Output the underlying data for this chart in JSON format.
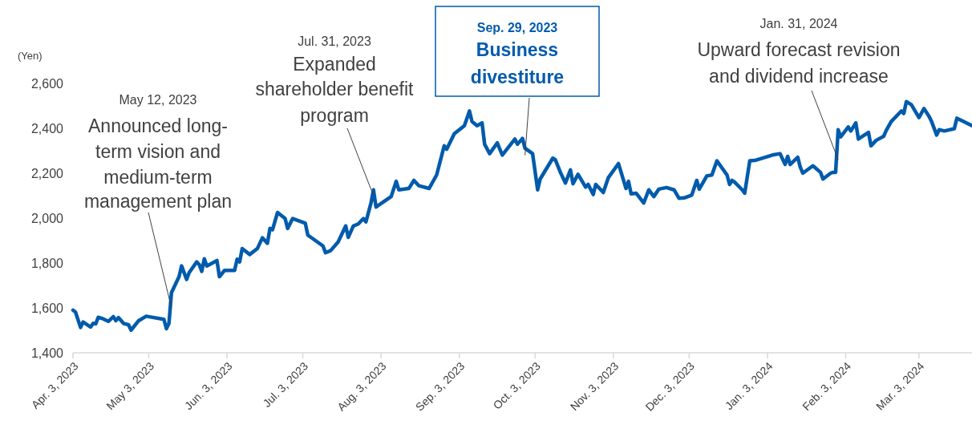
{
  "chart_data": {
    "type": "line",
    "ylabel": "(Yen)",
    "xlim": [
      "2023-04-03",
      "2024-03-24"
    ],
    "xticks": [
      {
        "value": "2023-04-03",
        "label": "Apr. 3, 2023"
      },
      {
        "value": "2023-05-03",
        "label": "May 3, 2023"
      },
      {
        "value": "2023-06-03",
        "label": "Jun. 3, 2023"
      },
      {
        "value": "2023-07-03",
        "label": "Jul. 3, 2023"
      },
      {
        "value": "2023-08-03",
        "label": "Aug. 3, 2023"
      },
      {
        "value": "2023-09-03",
        "label": "Sep. 3, 2023"
      },
      {
        "value": "2023-10-03",
        "label": "Oct. 3, 2023"
      },
      {
        "value": "2023-11-03",
        "label": "Nov. 3, 2023"
      },
      {
        "value": "2023-12-03",
        "label": "Dec. 3, 2023"
      },
      {
        "value": "2024-01-03",
        "label": "Jan. 3, 2024"
      },
      {
        "value": "2024-02-03",
        "label": "Feb. 3, 2024"
      },
      {
        "value": "2024-03-03",
        "label": "Mar. 3, 2024"
      }
    ],
    "ylim": [
      1400,
      2600
    ],
    "yticks": [
      {
        "value": 1400,
        "label": "1,400"
      },
      {
        "value": 1600,
        "label": "1,600"
      },
      {
        "value": 1800,
        "label": "1,800"
      },
      {
        "value": 2000,
        "label": "2,000"
      },
      {
        "value": 2200,
        "label": "2,200"
      },
      {
        "value": 2400,
        "label": "2,400"
      },
      {
        "value": 2600,
        "label": "2,600"
      }
    ],
    "x": [
      "2023-04-03",
      "2023-04-04",
      "2023-04-06",
      "2023-04-07",
      "2023-04-10",
      "2023-04-11",
      "2023-04-12",
      "2023-04-13",
      "2023-04-15",
      "2023-04-17",
      "2023-04-19",
      "2023-04-20",
      "2023-04-21",
      "2023-04-23",
      "2023-04-25",
      "2023-04-26",
      "2023-04-29",
      "2023-05-02",
      "2023-05-09",
      "2023-05-10",
      "2023-05-11",
      "2023-05-12",
      "2023-05-15",
      "2023-05-16",
      "2023-05-18",
      "2023-05-19",
      "2023-05-22",
      "2023-05-23",
      "2023-05-24",
      "2023-05-25",
      "2023-05-26",
      "2023-05-30",
      "2023-05-31",
      "2023-06-02",
      "2023-06-06",
      "2023-06-07",
      "2023-06-08",
      "2023-06-09",
      "2023-06-12",
      "2023-06-15",
      "2023-06-17",
      "2023-06-19",
      "2023-06-20",
      "2023-06-21",
      "2023-06-23",
      "2023-06-26",
      "2023-06-27",
      "2023-06-29",
      "2023-07-04",
      "2023-07-05",
      "2023-07-11",
      "2023-07-12",
      "2023-07-14",
      "2023-07-17",
      "2023-07-20",
      "2023-07-21",
      "2023-07-23",
      "2023-07-25",
      "2023-07-27",
      "2023-07-28",
      "2023-07-30",
      "2023-07-31",
      "2023-08-01",
      "2023-08-04",
      "2023-08-07",
      "2023-08-09",
      "2023-08-10",
      "2023-08-14",
      "2023-08-16",
      "2023-08-18",
      "2023-08-22",
      "2023-08-25",
      "2023-08-28",
      "2023-08-29",
      "2023-09-01",
      "2023-09-05",
      "2023-09-07",
      "2023-09-08",
      "2023-09-10",
      "2023-09-12",
      "2023-09-13",
      "2023-09-15",
      "2023-09-18",
      "2023-09-20",
      "2023-09-25",
      "2023-09-26",
      "2023-09-28",
      "2023-09-29",
      "2023-10-02",
      "2023-10-04",
      "2023-10-05",
      "2023-10-10",
      "2023-10-11",
      "2023-10-13",
      "2023-10-15",
      "2023-10-17",
      "2023-10-18",
      "2023-10-20",
      "2023-10-23",
      "2023-10-24",
      "2023-10-26",
      "2023-10-27",
      "2023-10-30",
      "2023-11-01",
      "2023-11-05",
      "2023-11-08",
      "2023-11-09",
      "2023-11-10",
      "2023-11-12",
      "2023-11-15",
      "2023-11-17",
      "2023-11-19",
      "2023-11-21",
      "2023-11-24",
      "2023-11-27",
      "2023-11-29",
      "2023-12-01",
      "2023-12-04",
      "2023-12-06",
      "2023-12-07",
      "2023-12-10",
      "2023-12-12",
      "2023-12-14",
      "2023-12-18",
      "2023-12-19",
      "2023-12-20",
      "2023-12-21",
      "2023-12-24",
      "2023-12-25",
      "2023-12-27",
      "2023-12-29",
      "2024-01-05",
      "2024-01-08",
      "2024-01-10",
      "2024-01-11",
      "2024-01-12",
      "2024-01-15",
      "2024-01-16",
      "2024-01-17",
      "2024-01-21",
      "2024-01-24",
      "2024-01-25",
      "2024-01-28",
      "2024-01-29",
      "2024-01-30",
      "2024-01-31",
      "2024-02-01",
      "2024-02-04",
      "2024-02-05",
      "2024-02-07",
      "2024-02-08",
      "2024-02-12",
      "2024-02-13",
      "2024-02-15",
      "2024-02-18",
      "2024-02-19",
      "2024-02-21",
      "2024-02-25",
      "2024-02-26",
      "2024-02-27",
      "2024-02-29",
      "2024-03-03",
      "2024-03-05",
      "2024-03-07",
      "2024-03-08",
      "2024-03-10",
      "2024-03-11",
      "2024-03-13",
      "2024-03-17",
      "2024-03-18",
      "2024-03-20",
      "2024-03-24"
    ],
    "series": [
      {
        "color": "#005bac",
        "values": [
          1590,
          1581,
          1513,
          1537,
          1515,
          1531,
          1529,
          1558,
          1551,
          1540,
          1561,
          1543,
          1557,
          1531,
          1525,
          1501,
          1543,
          1563,
          1549,
          1507,
          1531,
          1668,
          1739,
          1787,
          1727,
          1757,
          1805,
          1793,
          1763,
          1819,
          1787,
          1811,
          1739,
          1767,
          1767,
          1817,
          1805,
          1864,
          1838,
          1864,
          1912,
          1888,
          1954,
          1948,
          2025,
          1998,
          1954,
          1998,
          1977,
          1924,
          1876,
          1846,
          1855,
          1894,
          1965,
          1914,
          1965,
          1974,
          1998,
          1983,
          2067,
          2126,
          2049,
          2073,
          2096,
          2164,
          2126,
          2132,
          2168,
          2144,
          2132,
          2192,
          2322,
          2307,
          2376,
          2412,
          2477,
          2430,
          2412,
          2424,
          2329,
          2287,
          2335,
          2281,
          2352,
          2329,
          2355,
          2311,
          2287,
          2126,
          2174,
          2267,
          2260,
          2204,
          2156,
          2215,
          2153,
          2195,
          2138,
          2150,
          2105,
          2150,
          2114,
          2180,
          2243,
          2132,
          2164,
          2108,
          2111,
          2067,
          2126,
          2096,
          2129,
          2136,
          2126,
          2088,
          2090,
          2102,
          2168,
          2129,
          2188,
          2192,
          2255,
          2192,
          2150,
          2168,
          2160,
          2126,
          2111,
          2255,
          2257,
          2281,
          2287,
          2239,
          2275,
          2239,
          2271,
          2227,
          2200,
          2233,
          2204,
          2174,
          2200,
          2204,
          2204,
          2394,
          2362,
          2406,
          2388,
          2424,
          2352,
          2382,
          2322,
          2346,
          2364,
          2390,
          2430,
          2477,
          2466,
          2519,
          2505,
          2448,
          2488,
          2453,
          2430,
          2370,
          2394,
          2388,
          2398,
          2445,
          2434,
          2412
        ]
      }
    ],
    "annotations": [
      {
        "text": "May 12, 2023\nAnnounced long-\nterm vision and\nmedium-term\nmanagement plan",
        "x": "2023-05-12",
        "y": 1600
      },
      {
        "text": "Jul. 31, 2023\nExpanded\nshareholder benefit\nprogram",
        "x": "2023-07-31",
        "y": 2100
      },
      {
        "text": "Sep. 29, 2023\nBusiness\ndivestiture",
        "x": "2023-09-29",
        "y": 2280
      },
      {
        "text": "Jan. 31, 2024\nUpward forecast revision\nand dividend increase",
        "x": "2024-01-31",
        "y": 2260
      }
    ]
  }
}
